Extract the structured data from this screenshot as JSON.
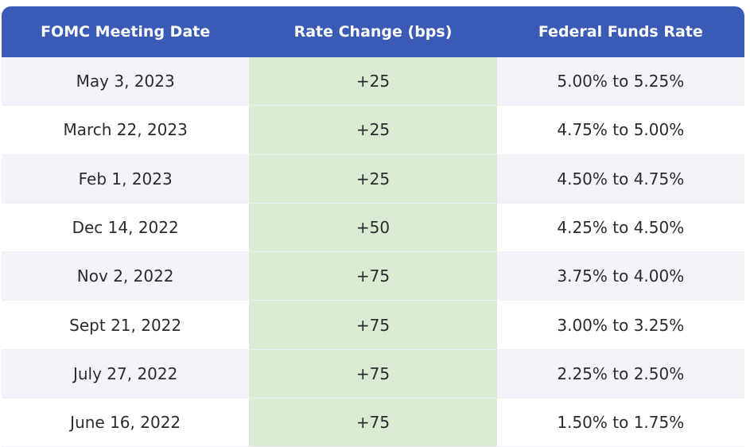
{
  "headers": [
    "FOMC Meeting Date",
    "Rate Change (bps)",
    "Federal Funds Rate"
  ],
  "rows": [
    [
      "May 3, 2023",
      "+25",
      "5.00% to 5.25%"
    ],
    [
      "March 22, 2023",
      "+25",
      "4.75% to 5.00%"
    ],
    [
      "Feb 1, 2023",
      "+25",
      "4.50% to 4.75%"
    ],
    [
      "Dec 14, 2022",
      "+50",
      "4.25% to 4.50%"
    ],
    [
      "Nov 2, 2022",
      "+75",
      "3.75% to 4.00%"
    ],
    [
      "Sept 21, 2022",
      "+75",
      "3.00% to 3.25%"
    ],
    [
      "July 27, 2022",
      "+75",
      "2.25% to 2.50%"
    ],
    [
      "June 16, 2022",
      "+75",
      "1.50% to 1.75%"
    ]
  ],
  "colors": {
    "header": "#3a5ab6",
    "rate_change_column": "#d9ebd3",
    "stripe": "#f3f4f9"
  }
}
